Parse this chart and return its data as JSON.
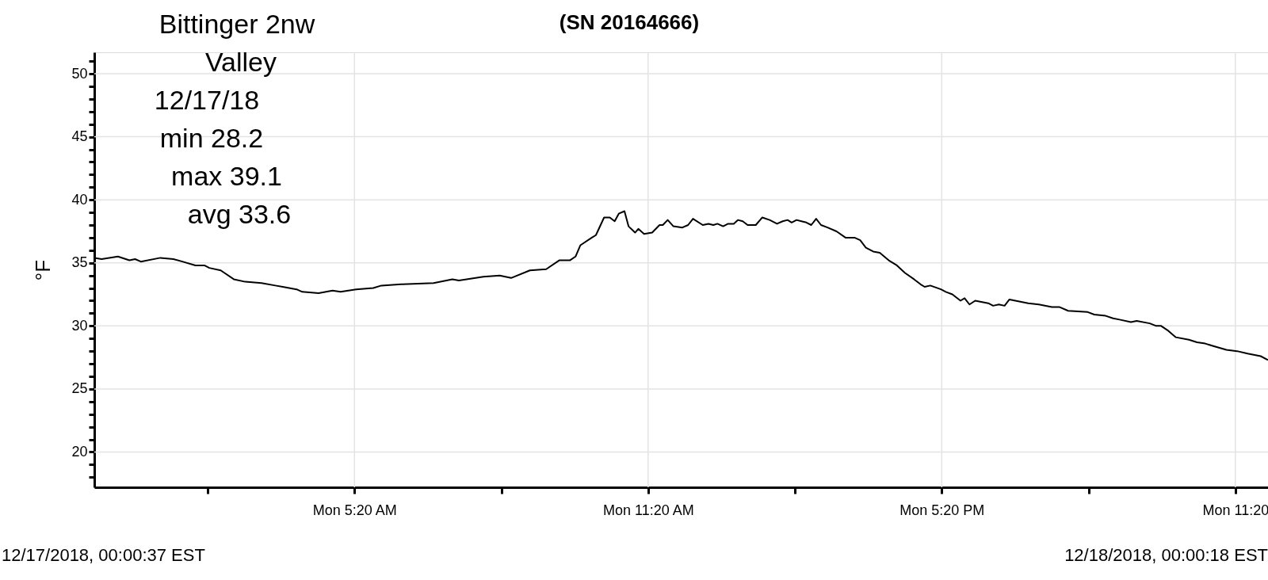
{
  "chart_data": {
    "type": "line",
    "title": "(SN 20164666)",
    "ylabel": "°F",
    "annotations": [
      "Bittinger 2nw",
      "Valley",
      "12/17/18",
      "min 28.2",
      "max 39.1",
      "avg 33.6",
      "12/17/2018, 00:00:37 EST",
      "12/18/2018, 00:00:18 EST"
    ],
    "x": [
      "2018-12-17T00:01",
      "2018-12-17T00:10",
      "2018-12-17T00:30",
      "2018-12-17T00:44",
      "2018-12-17T00:51",
      "2018-12-17T00:58",
      "2018-12-17T01:22",
      "2018-12-17T01:38",
      "2018-12-17T01:49",
      "2018-12-17T02:05",
      "2018-12-17T02:16",
      "2018-12-17T02:22",
      "2018-12-17T02:36",
      "2018-12-17T02:52",
      "2018-12-17T03:06",
      "2018-12-17T03:26",
      "2018-12-17T03:43",
      "2018-12-17T03:52",
      "2018-12-17T04:09",
      "2018-12-17T04:16",
      "2018-12-17T04:36",
      "2018-12-17T04:53",
      "2018-12-17T05:03",
      "2018-12-17T05:22",
      "2018-12-17T05:43",
      "2018-12-17T05:53",
      "2018-12-17T06:17",
      "2018-12-17T06:57",
      "2018-12-17T07:20",
      "2018-12-17T07:28",
      "2018-12-17T07:58",
      "2018-12-17T08:18",
      "2018-12-17T08:32",
      "2018-12-17T08:55",
      "2018-12-17T09:15",
      "2018-12-17T09:31",
      "2018-12-17T09:44",
      "2018-12-17T09:51",
      "2018-12-17T09:57",
      "2018-12-17T10:11",
      "2018-12-17T10:16",
      "2018-12-17T10:26",
      "2018-12-17T10:33",
      "2018-12-17T10:39",
      "2018-12-17T10:44",
      "2018-12-17T10:51",
      "2018-12-17T10:56",
      "2018-12-17T11:04",
      "2018-12-17T11:08",
      "2018-12-17T11:15",
      "2018-12-17T11:25",
      "2018-12-17T11:34",
      "2018-12-17T11:38",
      "2018-12-17T11:44",
      "2018-12-17T11:51",
      "2018-12-17T12:02",
      "2018-12-17T12:09",
      "2018-12-17T12:15",
      "2018-12-17T12:27",
      "2018-12-17T12:34",
      "2018-12-17T12:40",
      "2018-12-17T12:45",
      "2018-12-17T12:52",
      "2018-12-17T12:58",
      "2018-12-17T13:05",
      "2018-12-17T13:10",
      "2018-12-17T13:16",
      "2018-12-17T13:22",
      "2018-12-17T13:32",
      "2018-12-17T13:40",
      "2018-12-17T13:49",
      "2018-12-17T13:58",
      "2018-12-17T14:05",
      "2018-12-17T14:11",
      "2018-12-17T14:16",
      "2018-12-17T14:22",
      "2018-12-17T14:28",
      "2018-12-17T14:34",
      "2018-12-17T14:40",
      "2018-12-17T14:46",
      "2018-12-17T14:52",
      "2018-12-17T15:00",
      "2018-12-17T15:11",
      "2018-12-17T15:22",
      "2018-12-17T15:33",
      "2018-12-17T15:40",
      "2018-12-17T15:47",
      "2018-12-17T15:56",
      "2018-12-17T16:04",
      "2018-12-17T16:15",
      "2018-12-17T16:25",
      "2018-12-17T16:35",
      "2018-12-17T16:46",
      "2018-12-17T16:54",
      "2018-12-17T16:59",
      "2018-12-17T17:06",
      "2018-12-17T17:19",
      "2018-12-17T17:25",
      "2018-12-17T17:33",
      "2018-12-17T17:43",
      "2018-12-17T17:48",
      "2018-12-17T17:54",
      "2018-12-17T18:01",
      "2018-12-17T18:17",
      "2018-12-17T18:23",
      "2018-12-17T18:30",
      "2018-12-17T18:37",
      "2018-12-17T18:43",
      "2018-12-17T19:06",
      "2018-12-17T19:19",
      "2018-12-17T19:35",
      "2018-12-17T19:44",
      "2018-12-17T19:55",
      "2018-12-17T20:19",
      "2018-12-17T20:27",
      "2018-12-17T20:41",
      "2018-12-17T20:50",
      "2018-12-17T20:58",
      "2018-12-17T21:12",
      "2018-12-17T21:19",
      "2018-12-17T21:35",
      "2018-12-17T21:43",
      "2018-12-17T21:49",
      "2018-12-17T21:58",
      "2018-12-17T22:07",
      "2018-12-17T22:23",
      "2018-12-17T22:33",
      "2018-12-17T22:43",
      "2018-12-17T22:53",
      "2018-12-17T23:09",
      "2018-12-17T23:22",
      "2018-12-17T23:35",
      "2018-12-17T23:51",
      "2018-12-18T00:00"
    ],
    "series": [
      {
        "color": "#000000",
        "values": [
          35.4,
          35.3,
          35.5,
          35.2,
          35.3,
          35.1,
          35.4,
          35.3,
          35.1,
          34.8,
          34.8,
          34.6,
          34.4,
          33.7,
          33.5,
          33.4,
          33.2,
          33.1,
          32.9,
          32.7,
          32.6,
          32.8,
          32.7,
          32.9,
          33.0,
          33.2,
          33.3,
          33.4,
          33.7,
          33.6,
          33.9,
          34.0,
          33.8,
          34.4,
          34.5,
          35.2,
          35.2,
          35.5,
          36.4,
          37.0,
          37.2,
          38.6,
          38.6,
          38.3,
          38.9,
          39.1,
          37.9,
          37.4,
          37.7,
          37.3,
          37.4,
          38.0,
          38.0,
          38.4,
          37.9,
          37.8,
          38.0,
          38.5,
          38.0,
          38.1,
          38.0,
          38.1,
          37.9,
          38.1,
          38.1,
          38.4,
          38.3,
          38.0,
          38.0,
          38.6,
          38.4,
          38.1,
          38.3,
          38.4,
          38.2,
          38.4,
          38.3,
          38.2,
          38.0,
          38.5,
          38.0,
          37.8,
          37.5,
          37.0,
          37.0,
          36.8,
          36.2,
          35.9,
          35.8,
          35.2,
          34.8,
          34.2,
          33.7,
          33.3,
          33.1,
          33.2,
          32.9,
          32.7,
          32.5,
          32.0,
          32.2,
          31.7,
          32.0,
          31.8,
          31.6,
          31.7,
          31.6,
          32.1,
          31.8,
          31.7,
          31.5,
          31.5,
          31.2,
          31.1,
          30.9,
          30.8,
          30.6,
          30.5,
          30.3,
          30.4,
          30.2,
          30.0,
          30.0,
          29.6,
          29.1,
          28.9,
          28.7,
          28.6,
          28.4,
          28.1,
          28.0,
          27.8,
          27.6,
          27.3
        ]
      }
    ],
    "xlim": [
      "2018-12-17T00:01",
      "2018-12-18T00:00"
    ],
    "xticks": [
      {
        "value": "2018-12-17T02:20",
        "label": null
      },
      {
        "value": "2018-12-17T05:20",
        "label": "Mon 5:20 AM"
      },
      {
        "value": "2018-12-17T08:20",
        "label": null
      },
      {
        "value": "2018-12-17T11:20",
        "label": "Mon 11:20 AM"
      },
      {
        "value": "2018-12-17T14:20",
        "label": null
      },
      {
        "value": "2018-12-17T17:20",
        "label": "Mon 5:20 PM"
      },
      {
        "value": "2018-12-17T20:20",
        "label": null
      },
      {
        "value": "2018-12-17T23:20",
        "label": "Mon 11:20"
      }
    ],
    "ylim": [
      17.2,
      51.7
    ],
    "yticks": [
      {
        "value": 18,
        "label": null
      },
      {
        "value": 19,
        "label": null
      },
      20,
      {
        "value": 21,
        "label": null
      },
      {
        "value": 22,
        "label": null
      },
      {
        "value": 23,
        "label": null
      },
      {
        "value": 24,
        "label": null
      },
      25,
      {
        "value": 26,
        "label": null
      },
      {
        "value": 27,
        "label": null
      },
      {
        "value": 28,
        "label": null
      },
      {
        "value": 29,
        "label": null
      },
      30,
      {
        "value": 31,
        "label": null
      },
      {
        "value": 32,
        "label": null
      },
      {
        "value": 33,
        "label": null
      },
      {
        "value": 34,
        "label": null
      },
      35,
      {
        "value": 36,
        "label": null
      },
      {
        "value": 37,
        "label": null
      },
      {
        "value": 38,
        "label": null
      },
      {
        "value": 39,
        "label": null
      },
      40,
      {
        "value": 41,
        "label": null
      },
      {
        "value": 42,
        "label": null
      },
      {
        "value": 43,
        "label": null
      },
      {
        "value": 44,
        "label": null
      },
      45,
      {
        "value": 46,
        "label": null
      },
      {
        "value": 47,
        "label": null
      },
      {
        "value": 48,
        "label": null
      },
      {
        "value": 49,
        "label": null
      },
      50,
      {
        "value": 51,
        "label": null
      }
    ],
    "grid": true,
    "marker": "none",
    "line_style": "solid"
  }
}
